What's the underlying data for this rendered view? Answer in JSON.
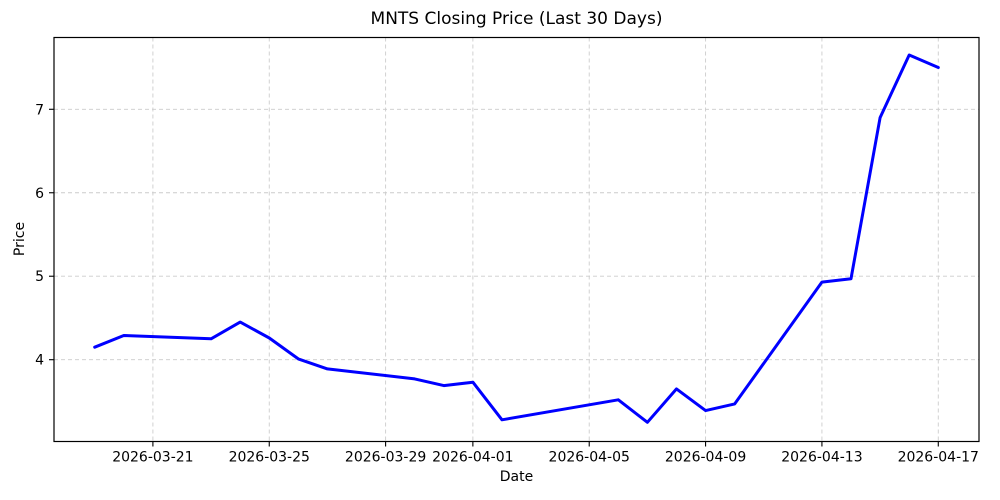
{
  "chart_data": {
    "type": "line",
    "title": "MNTS Closing Price (Last 30 Days)",
    "xlabel": "Date",
    "ylabel": "Price",
    "x": [
      "2026-03-19",
      "2026-03-20",
      "2026-03-23",
      "2026-03-24",
      "2026-03-25",
      "2026-03-26",
      "2026-03-27",
      "2026-03-30",
      "2026-03-31",
      "2026-04-01",
      "2026-04-02",
      "2026-04-06",
      "2026-04-07",
      "2026-04-08",
      "2026-04-09",
      "2026-04-10",
      "2026-04-13",
      "2026-04-14",
      "2026-04-15",
      "2026-04-16",
      "2026-04-17"
    ],
    "y": [
      4.15,
      4.29,
      4.25,
      4.45,
      4.26,
      4.01,
      3.89,
      3.77,
      3.69,
      3.73,
      3.28,
      3.52,
      3.25,
      3.65,
      3.39,
      3.47,
      4.93,
      4.97,
      6.9,
      7.65,
      7.5
    ],
    "x_tick_labels": [
      "2026-03-21",
      "2026-03-25",
      "2026-03-29",
      "2026-04-01",
      "2026-04-05",
      "2026-04-09",
      "2026-04-13",
      "2026-04-17"
    ],
    "y_ticks": [
      4,
      5,
      6,
      7
    ],
    "ylim": [
      3.02,
      7.86
    ],
    "xlim_days_from_first": [
      -1.4,
      30.4
    ],
    "grid": true,
    "grid_style": "dashed",
    "legend": false,
    "line_color": "#0000ff",
    "grid_color": "#cccccc",
    "spine_color": "#000000"
  }
}
